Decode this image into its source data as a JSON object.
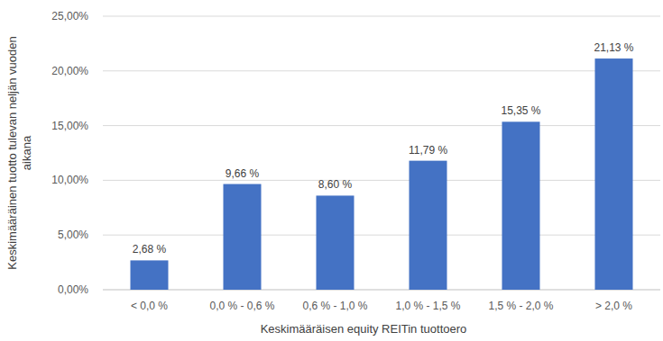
{
  "chart_data": {
    "type": "bar",
    "categories": [
      "< 0,0 %",
      "0,0 % - 0,6 %",
      "0,6 % - 1,0 %",
      "1,0 % - 1,5 %",
      "1,5 % - 2,0 %",
      "> 2,0 %"
    ],
    "values": [
      2.68,
      9.66,
      8.6,
      11.79,
      15.35,
      21.13
    ],
    "value_labels": [
      "2,68 %",
      "9,66 %",
      "8,60 %",
      "11,79 %",
      "15,35 %",
      "21,13 %"
    ],
    "color": "#4472c4",
    "x_label": "Keskimääräisen equity REITin tuottoero",
    "y_label": "Keskimääräinen tuotto tulevan neljän vuoden aikana",
    "ylim": [
      0,
      25
    ],
    "yticks": [
      {
        "value": 0,
        "label": "0,00%"
      },
      {
        "value": 5,
        "label": "5,00%"
      },
      {
        "value": 10,
        "label": "10,00%"
      },
      {
        "value": 15,
        "label": "15,00%"
      },
      {
        "value": 20,
        "label": "20,00%"
      },
      {
        "value": 25,
        "label": "25,00%"
      }
    ],
    "grid": true,
    "data_labels": true
  }
}
